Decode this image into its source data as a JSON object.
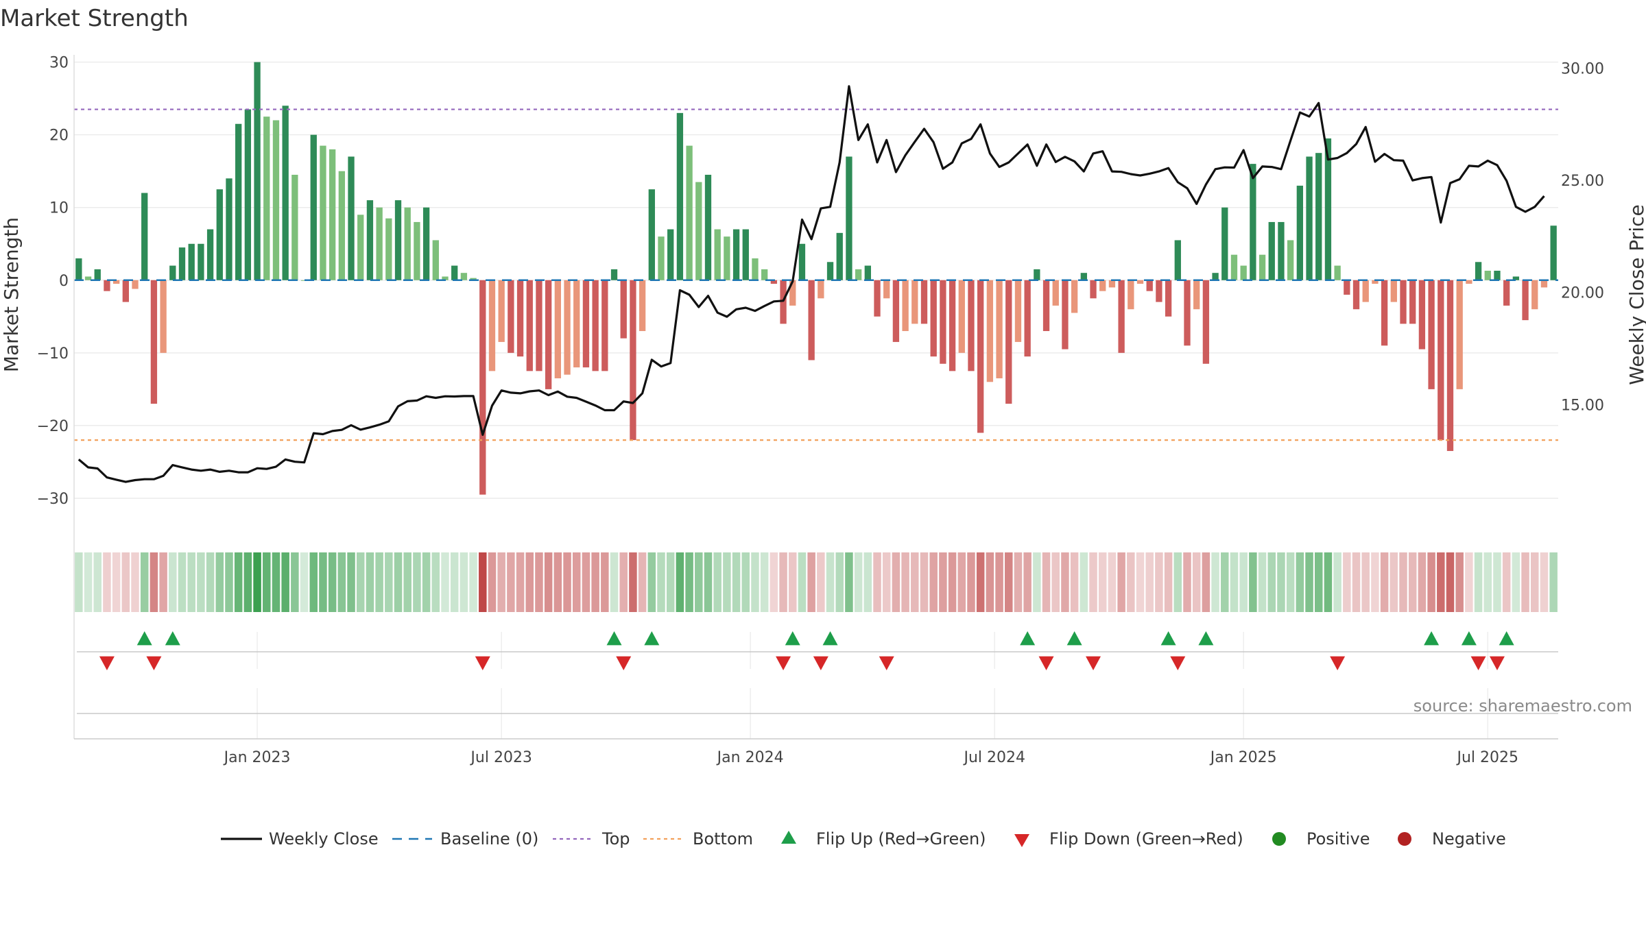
{
  "chart_data": {
    "type": "bar",
    "title": "Market Strength",
    "ylabel_left": "Market Strength",
    "ylabel_right": "Weekly Close Price",
    "source": "source: sharemaestro.com",
    "ylim_left": [
      -35,
      31
    ],
    "ylim_right": [
      9.2,
      30.6
    ],
    "yticks_left": [
      30,
      20,
      10,
      0,
      -10,
      -20,
      -30
    ],
    "ytick_labels_left": [
      "30",
      "20",
      "10",
      "0",
      "−10",
      "−20",
      "−30"
    ],
    "yticks_right": [
      30,
      25,
      20,
      15
    ],
    "ytick_labels_right": [
      "30.00",
      "25.00",
      "20.00",
      "15.00"
    ],
    "x_ticks": [
      {
        "week": 19.5,
        "label": "Jan 2023"
      },
      {
        "week": 45.5,
        "label": "Jul 2023"
      },
      {
        "week": 72.0,
        "label": "Jan 2024"
      },
      {
        "week": 98.0,
        "label": "Jul 2024"
      },
      {
        "week": 124.5,
        "label": "Jan 2025"
      },
      {
        "week": 150.5,
        "label": "Jul 2025"
      }
    ],
    "top_level": 23.5,
    "bottom_level": -22,
    "strength": [
      3,
      0.5,
      1.5,
      -1.5,
      -0.5,
      -3,
      -1.2,
      12,
      -17,
      -10,
      2,
      4.5,
      5,
      5,
      7,
      12.5,
      14,
      21.5,
      23.5,
      30,
      22.5,
      22,
      24,
      14.5,
      0,
      20,
      18.5,
      18,
      15,
      17,
      9,
      11,
      10,
      8.5,
      11,
      10,
      8,
      10,
      5.5,
      0.5,
      2,
      1,
      0.3,
      -29.5,
      -12.5,
      -8.5,
      -10,
      -10.5,
      -12.5,
      -12.5,
      -15,
      -13.5,
      -13,
      -12,
      -12,
      -12.5,
      -12.5,
      1.5,
      -8,
      -22,
      -7,
      12.5,
      6,
      7,
      23,
      18.5,
      13.5,
      14.5,
      7,
      6,
      7,
      7,
      3,
      1.5,
      -0.5,
      -6,
      -3.5,
      5,
      -11,
      -2.5,
      2.5,
      6.5,
      17,
      1.5,
      2,
      -5,
      -2.5,
      -8.5,
      -7,
      -6,
      -6,
      -10.5,
      -11.5,
      -12.5,
      -10,
      -12.5,
      -21,
      -14,
      -13.5,
      -17,
      -8.5,
      -10.5,
      1.5,
      -7,
      -3.5,
      -9.5,
      -4.5,
      1,
      -2.5,
      -1.5,
      -1,
      -10,
      -4,
      -0.5,
      -1.5,
      -3,
      -5,
      5.5,
      -9,
      -4,
      -11.5,
      1,
      10,
      3.5,
      2,
      16,
      3.5,
      8,
      8,
      5.5,
      13,
      17,
      17.5,
      19.5,
      2,
      -2,
      -4,
      -3,
      -0.5,
      -9,
      -3,
      -6,
      -6,
      -9.5,
      -15,
      -22,
      -23.5,
      -15,
      -0.5,
      2.5,
      1.3,
      1.3,
      -3.5,
      0.5,
      -5.5,
      -4,
      -1,
      7.5
    ],
    "close": [
      12.55,
      12.2,
      12.15,
      11.75,
      11.65,
      11.55,
      11.63,
      11.67,
      11.67,
      11.82,
      12.3,
      12.2,
      12.1,
      12.05,
      12.1,
      12.0,
      12.05,
      11.98,
      11.98,
      12.16,
      12.13,
      12.23,
      12.55,
      12.45,
      12.42,
      13.72,
      13.68,
      13.82,
      13.87,
      14.08,
      13.88,
      13.98,
      14.1,
      14.25,
      14.92,
      15.15,
      15.18,
      15.37,
      15.3,
      15.37,
      15.36,
      15.38,
      15.38,
      13.65,
      14.95,
      15.63,
      15.53,
      15.5,
      15.59,
      15.63,
      15.42,
      15.58,
      15.35,
      15.3,
      15.13,
      14.96,
      14.75,
      14.75,
      15.14,
      15.07,
      15.5,
      17.0,
      16.7,
      16.85,
      20.1,
      19.9,
      19.35,
      19.85,
      19.1,
      18.92,
      19.25,
      19.32,
      19.18,
      19.4,
      19.6,
      19.63,
      20.5,
      23.25,
      22.38,
      23.75,
      23.82,
      25.8,
      29.2,
      26.8,
      27.5,
      25.8,
      26.8,
      25.37,
      26.12,
      26.72,
      27.3,
      26.7,
      25.52,
      25.8,
      26.65,
      26.85,
      27.5,
      26.2,
      25.6,
      25.8,
      26.2,
      26.6,
      25.65,
      26.6,
      25.82,
      26.05,
      25.85,
      25.4,
      26.2,
      26.3,
      25.4,
      25.38,
      25.28,
      25.22,
      25.3,
      25.4,
      25.55,
      24.92,
      24.65,
      23.95,
      24.82,
      25.5,
      25.58,
      25.57,
      26.35,
      25.1,
      25.62,
      25.6,
      25.5,
      26.78,
      28.03,
      27.85,
      28.45,
      25.93,
      26.0,
      26.22,
      26.62,
      27.38,
      25.83,
      26.18,
      25.9,
      25.88,
      25.0,
      25.1,
      25.15,
      23.12,
      24.88,
      25.05,
      25.65,
      25.62,
      25.88,
      25.68,
      24.98,
      23.82,
      23.6,
      23.82,
      24.3
    ],
    "flips_up": [
      7,
      10,
      57,
      61,
      76,
      80,
      101,
      106,
      116,
      120,
      144,
      148,
      152
    ],
    "flips_down": [
      3,
      8,
      43,
      58,
      75,
      79,
      86,
      103,
      108,
      117,
      134,
      149,
      151
    ],
    "legend": [
      "Weekly Close",
      "Baseline (0)",
      "Top",
      "Bottom",
      "Flip Up (Red→Green)",
      "Flip Down (Green→Red)",
      "Positive",
      "Negative"
    ],
    "legend_placement": "bottom",
    "grid": true
  },
  "colors": {
    "pos_strong": "#2e8b57",
    "pos_light": "#7dbf7a",
    "neg_strong": "#cd5c5c",
    "neg_light": "#e9967a",
    "close_line": "#111111",
    "baseline": "#1f77b4",
    "top_line": "#9467bd",
    "bottom_line": "#f2a15c",
    "flip_up": "#1e9e4a",
    "flip_down": "#d62728",
    "positive_dot": "#228b22",
    "negative_dot": "#b22222",
    "grid": "#ececec"
  }
}
